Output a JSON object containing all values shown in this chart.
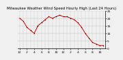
{
  "title": "Milwaukee Weather Wind Speed Hourly High (Last 24 Hours)",
  "x_values": [
    0,
    1,
    2,
    3,
    4,
    5,
    6,
    7,
    8,
    9,
    10,
    11,
    12,
    13,
    14,
    15,
    16,
    17,
    18,
    19,
    20,
    21,
    22,
    23
  ],
  "y_values": [
    20,
    18,
    14,
    12,
    10,
    15,
    17,
    19,
    21,
    20,
    21,
    22,
    21,
    21,
    20,
    19,
    17,
    14,
    10,
    7,
    4,
    3,
    2,
    2
  ],
  "ylim": [
    0,
    25
  ],
  "line_color": "#cc0000",
  "dot_color": "#000000",
  "grid_color": "#bbbbbb",
  "bg_color": "#f0f0f0",
  "plot_bg_color": "#f0f0f0",
  "title_color": "#000000",
  "tick_label_color": "#000000",
  "title_fontsize": 3.8,
  "tick_fontsize": 3.2,
  "ylabel_right_vals": [
    25,
    20,
    15,
    10,
    5,
    0
  ],
  "x_tick_positions": [
    0,
    2,
    4,
    6,
    8,
    10,
    12,
    14,
    16,
    18,
    20,
    22
  ],
  "x_tick_labels": [
    "12",
    "2",
    "4",
    "6",
    "8",
    "10",
    "12",
    "2",
    "4",
    "6",
    "8",
    "10"
  ]
}
